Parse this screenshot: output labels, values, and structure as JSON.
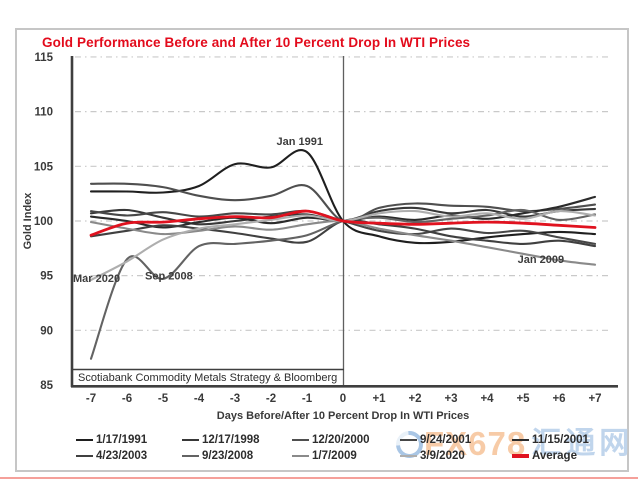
{
  "chart_data": {
    "type": "line",
    "title": "Gold Performance Before and After 10 Percent Drop In WTI Prices",
    "title_color": "#e30b1c",
    "xlabel": "Days Before/After 10 Percent Drop In WTI Prices",
    "ylabel": "Gold Index",
    "x": [
      -7,
      -6,
      -5,
      -4,
      -3,
      -2,
      -1,
      0,
      1,
      2,
      3,
      4,
      5,
      6,
      7
    ],
    "x_tick_labels": [
      "-7",
      "-6",
      "-5",
      "-4",
      "-3",
      "-2",
      "-1",
      "0",
      "+1",
      "+2",
      "+3",
      "+4",
      "+5",
      "+6",
      "+7"
    ],
    "y_ticks": [
      85,
      90,
      95,
      100,
      105,
      110,
      115
    ],
    "ylim": [
      85,
      115
    ],
    "grid": "horizontal-dash-dot",
    "legend_position": "bottom",
    "source": "Scotiabank Commodity Metals Strategy & Bloomberg",
    "series": [
      {
        "name": "1/17/1991",
        "color": "#1f1f1f",
        "values": [
          102.7,
          102.7,
          102.6,
          103.2,
          105.2,
          104.9,
          106.3,
          100,
          98.6,
          98.0,
          98.1,
          98.5,
          98.8,
          99.0,
          98.8
        ]
      },
      {
        "name": "12/17/1998",
        "color": "#383838",
        "values": [
          100.7,
          101.0,
          100.3,
          99.7,
          100.0,
          100.4,
          100.6,
          100,
          100.9,
          101.2,
          100.7,
          101.0,
          100.4,
          100.9,
          101.1
        ]
      },
      {
        "name": "12/20/2000",
        "color": "#4f4f4f",
        "values": [
          103.4,
          103.4,
          103.1,
          102.3,
          101.9,
          102.3,
          103.2,
          100,
          101.2,
          101.6,
          101.4,
          101.3,
          100.9,
          101.1,
          101.5
        ]
      },
      {
        "name": "9/24/2001",
        "color": "#474747",
        "values": [
          100.9,
          100.5,
          100.8,
          100.4,
          100.7,
          100.6,
          100.9,
          100,
          99.1,
          98.8,
          99.3,
          98.9,
          99.1,
          98.5,
          97.9
        ]
      },
      {
        "name": "11/15/2001",
        "color": "#2b2b2b",
        "values": [
          100.4,
          100.0,
          99.4,
          99.9,
          100.3,
          99.8,
          100.3,
          100,
          100.4,
          100.1,
          100.5,
          100.2,
          100.7,
          101.3,
          102.2
        ]
      },
      {
        "name": "4/23/2003",
        "color": "#404040",
        "values": [
          98.6,
          99.1,
          99.6,
          99.3,
          98.9,
          98.4,
          98.1,
          100,
          99.7,
          99.3,
          98.6,
          98.2,
          97.9,
          98.2,
          97.7
        ]
      },
      {
        "name": "9/23/2008",
        "color": "#636363",
        "values": [
          87.4,
          96.5,
          94.7,
          97.7,
          97.9,
          98.2,
          98.7,
          100,
          100.3,
          99.9,
          100.2,
          100.5,
          101.0,
          100.1,
          100.6
        ]
      },
      {
        "name": "1/7/2009",
        "color": "#8a8a8a",
        "values": [
          99.9,
          99.3,
          98.8,
          99.1,
          99.5,
          99.2,
          99.7,
          100,
          99.3,
          98.7,
          98.2,
          97.6,
          97.0,
          96.4,
          96.0
        ]
      },
      {
        "name": "3/9/2020",
        "color": "#aeaeae",
        "values": [
          94.6,
          96.3,
          98.3,
          99.3,
          99.7,
          100.1,
          100.5,
          100,
          100.7,
          100.9,
          100.4,
          100.7,
          100.2,
          100.9,
          100.5
        ]
      },
      {
        "name": "Average",
        "color": "#e0121f",
        "emphasis": true,
        "values": [
          98.7,
          99.8,
          99.9,
          100.2,
          100.4,
          100.3,
          100.9,
          100,
          99.8,
          99.7,
          99.8,
          99.9,
          99.8,
          99.6,
          99.4
        ]
      }
    ],
    "annotations": [
      {
        "text": "Jan 1991",
        "day": -1.2,
        "value": 107.3,
        "anchor": "middle"
      },
      {
        "text": "Mar 2020",
        "day": -7.5,
        "value": 94.8,
        "anchor": "start"
      },
      {
        "text": "Sep 2008",
        "day": -5.5,
        "value": 95.0,
        "anchor": "start"
      },
      {
        "text": "Jan 2009",
        "day": 4.85,
        "value": 96.5,
        "anchor": "start"
      }
    ]
  },
  "watermark": {
    "text": "FX678",
    "cjk": "汇通网",
    "text_color": "#f7c9a3",
    "cjk_color": "#bdd3ec",
    "logo": "blue-ring-swoosh"
  },
  "page": {
    "bottom_rule_color": "#f5a09a"
  }
}
